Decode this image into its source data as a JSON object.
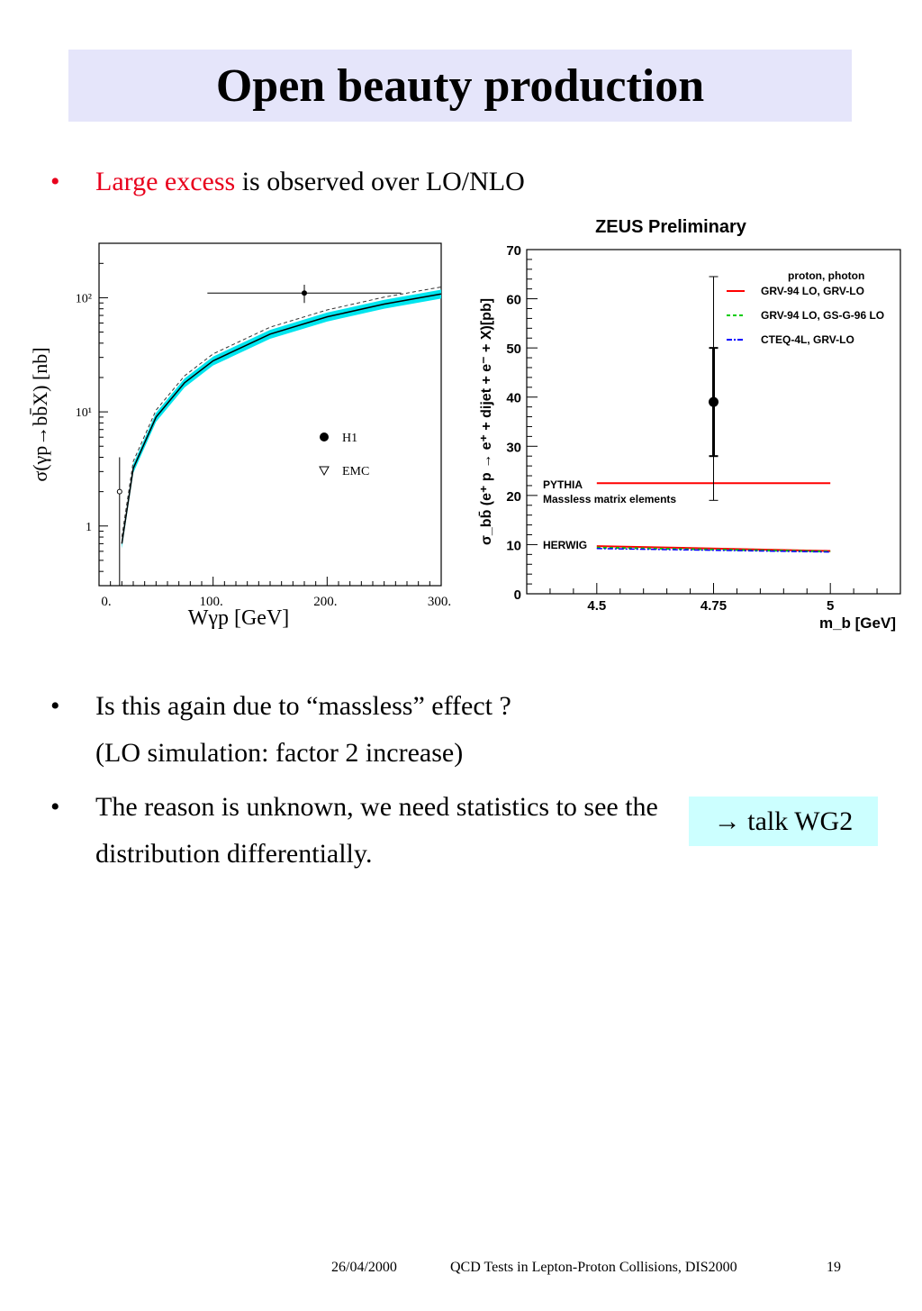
{
  "title": "Open beauty production",
  "bullet1": {
    "bullet": "•",
    "highlight": "Large excess",
    "rest": " is observed over LO/NLO"
  },
  "bullet2": {
    "bullet": "•",
    "line1": "Is this again due to “massless” effect ?",
    "line2": "(LO simulation: factor 2 increase)"
  },
  "bullet3": {
    "bullet": "•",
    "line1": "The reason is unknown, we need statistics to see the",
    "line2": "distribution differentially."
  },
  "talk_box": "→ talk WG2",
  "footer": {
    "date": "26/04/2000",
    "conference": "QCD Tests in Lepton-Proton Collisions, DIS2000",
    "page": "19"
  },
  "colors": {
    "title_bg": "#e5e5fa",
    "highlight": "#e8001c",
    "talk_bg": "#ccffff",
    "band": "#00e5ee"
  },
  "chart_data": [
    {
      "type": "scatter",
      "title": "",
      "xlabel": "Wγp [GeV]",
      "ylabel": "σ(γp→bb̄X) [nb]",
      "xlim": [
        0,
        300
      ],
      "ylim": [
        0.3,
        300
      ],
      "yscale": "log",
      "x_ticks": [
        "0.",
        "100.",
        "200.",
        "300."
      ],
      "y_ticks": [
        "1",
        "10¹",
        "10²"
      ],
      "legend": [
        "H1",
        "EMC"
      ],
      "series": [
        {
          "name": "H1",
          "x": [
            180
          ],
          "y": [
            110
          ],
          "xerr_low": [
            85
          ],
          "xerr_high": [
            85
          ],
          "y_low": [
            90
          ],
          "y_high": [
            130
          ]
        },
        {
          "name": "EMC",
          "x": [
            18
          ],
          "y": [
            2.0
          ],
          "y_low": [
            0.3
          ],
          "y_high": [
            4
          ]
        }
      ],
      "curve_x": [
        20,
        30,
        50,
        75,
        100,
        150,
        200,
        250,
        300
      ],
      "curve_y": [
        0.7,
        3.2,
        9,
        18,
        28,
        48,
        68,
        88,
        108
      ],
      "band_halfwidth_frac": 0.09
    },
    {
      "type": "scatter",
      "title": "ZEUS Preliminary",
      "xlabel": "m_b [GeV]",
      "ylabel": "σ_bb̄ (e⁺ p → e⁺ + dijet + e⁻ + X)[pb]",
      "xlim": [
        4.35,
        5.15
      ],
      "ylim": [
        0,
        70
      ],
      "x_ticks": [
        4.5,
        4.75,
        5
      ],
      "x_tick_labels": [
        "4.5",
        "4.75",
        "5"
      ],
      "y_ticks": [
        0,
        10,
        20,
        30,
        40,
        50,
        60,
        70
      ],
      "legend_header": "proton, photon",
      "legend": [
        {
          "label": "GRV-94 LO, GRV-LO",
          "color": "#ff0000",
          "dash": "solid"
        },
        {
          "label": "GRV-94 LO, GS-G-96 LO",
          "color": "#00cc00",
          "dash": "dashed"
        },
        {
          "label": "CTEQ-4L, GRV-LO",
          "color": "#0000ff",
          "dash": "dashdot"
        }
      ],
      "data_point": {
        "x": 4.75,
        "y": 39,
        "stat_low": 28,
        "stat_high": 50,
        "sys_low": 19,
        "sys_high": 64.5
      },
      "pythia": {
        "label1": "PYTHIA",
        "label2": "Massless matrix elements",
        "y": 22.5,
        "x_from": 4.5,
        "x_to": 5.0
      },
      "herwig": {
        "label": "HERWIG",
        "x": [
          4.5,
          5.0
        ],
        "y": [
          9.7,
          8.7
        ]
      }
    }
  ]
}
